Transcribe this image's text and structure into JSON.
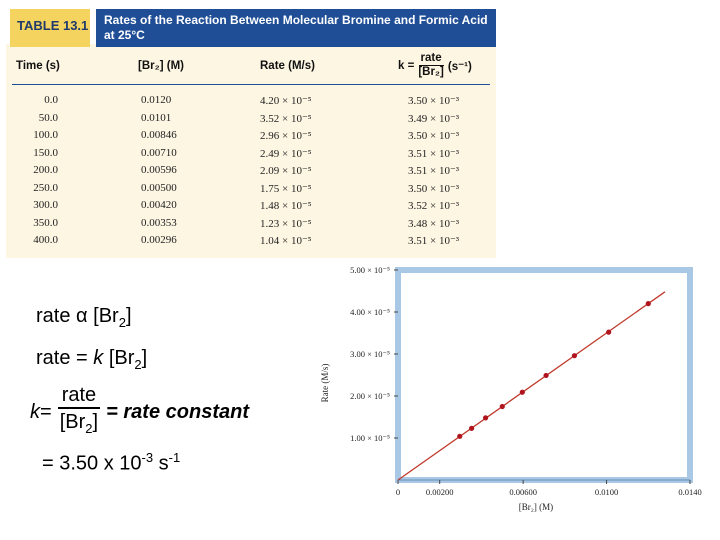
{
  "table": {
    "number": "TABLE 13.1",
    "title": "Rates of the Reaction Between Molecular Bromine and Formic Acid at 25°C",
    "headers": {
      "time": "Time (s)",
      "br2": "[Br₂] (M)",
      "rate": "Rate (M/s)",
      "k_prefix": "k =",
      "k_num": "rate",
      "k_den": "[Br₂]",
      "k_unit": "(s⁻¹)"
    },
    "rows": [
      {
        "time": "0.0",
        "br2": "0.0120",
        "rate": "4.20 × 10⁻⁵",
        "k": "3.50 × 10⁻³"
      },
      {
        "time": "50.0",
        "br2": "0.0101",
        "rate": "3.52 × 10⁻⁵",
        "k": "3.49 × 10⁻³"
      },
      {
        "time": "100.0",
        "br2": "0.00846",
        "rate": "2.96 × 10⁻⁵",
        "k": "3.50 × 10⁻³"
      },
      {
        "time": "150.0",
        "br2": "0.00710",
        "rate": "2.49 × 10⁻⁵",
        "k": "3.51 × 10⁻³"
      },
      {
        "time": "200.0",
        "br2": "0.00596",
        "rate": "2.09 × 10⁻⁵",
        "k": "3.51 × 10⁻³"
      },
      {
        "time": "250.0",
        "br2": "0.00500",
        "rate": "1.75 × 10⁻⁵",
        "k": "3.50 × 10⁻³"
      },
      {
        "time": "300.0",
        "br2": "0.00420",
        "rate": "1.48 × 10⁻⁵",
        "k": "3.52 × 10⁻³"
      },
      {
        "time": "350.0",
        "br2": "0.00353",
        "rate": "1.23 × 10⁻⁵",
        "k": "3.48 × 10⁻³"
      },
      {
        "time": "400.0",
        "br2": "0.00296",
        "rate": "1.04 × 10⁻⁵",
        "k": "3.51 × 10⁻³"
      }
    ]
  },
  "equations": {
    "line1_prefix": "rate ",
    "line1_symbol": "α",
    "line1_br": " [Br",
    "line1_sub": "2",
    "line1_close": "]",
    "line2_prefix": "rate = ",
    "line2_k": "k",
    "line2_br": " [Br",
    "line2_sub": "2",
    "line2_close": "]",
    "line3_k": "k",
    "line3_eq": " =",
    "line3_num": "rate",
    "line3_den_br": "[Br",
    "line3_den_sub": "2",
    "line3_den_close": "]",
    "line3_tail": "= rate constant",
    "line4_text": "= 3.50 x 10",
    "line4_exp": "-3",
    "line4_unit": " s",
    "line4_unit_exp": "-1"
  },
  "colors": {
    "title_bg": "#1f4e96",
    "tag_bg": "#f4d35e",
    "table_bg": "#fdf6e3",
    "chart_frame": "#a9c8e6",
    "chart_line": "#c0392b",
    "chart_points": "#b0141e"
  },
  "chart_data": {
    "type": "scatter",
    "xlabel": "[Br₂] (M)",
    "ylabel": "Rate (M/s)",
    "xlim": [
      0,
      0.014
    ],
    "ylim": [
      0,
      5e-05
    ],
    "x_ticks": [
      "0",
      "0.00200",
      "0.00600",
      "0.0100",
      "0.0140"
    ],
    "x_tick_values": [
      0,
      0.002,
      0.006,
      0.01,
      0.014
    ],
    "y_ticks": [
      "1.00 × 10⁻⁵",
      "2.00 × 10⁻⁵",
      "3.00 × 10⁻⁵",
      "4.00 × 10⁻⁵",
      "5.00 × 10⁻⁵"
    ],
    "y_tick_values": [
      1e-05,
      2e-05,
      3e-05,
      4e-05,
      5e-05
    ],
    "x": [
      0.012,
      0.0101,
      0.00846,
      0.0071,
      0.00596,
      0.005,
      0.0042,
      0.00353,
      0.00296
    ],
    "y": [
      4.2e-05,
      3.52e-05,
      2.96e-05,
      2.49e-05,
      2.09e-05,
      1.75e-05,
      1.48e-05,
      1.23e-05,
      1.04e-05
    ],
    "fit_line": {
      "slope": 0.0035,
      "x_end": 0.0128
    },
    "grid": false
  }
}
